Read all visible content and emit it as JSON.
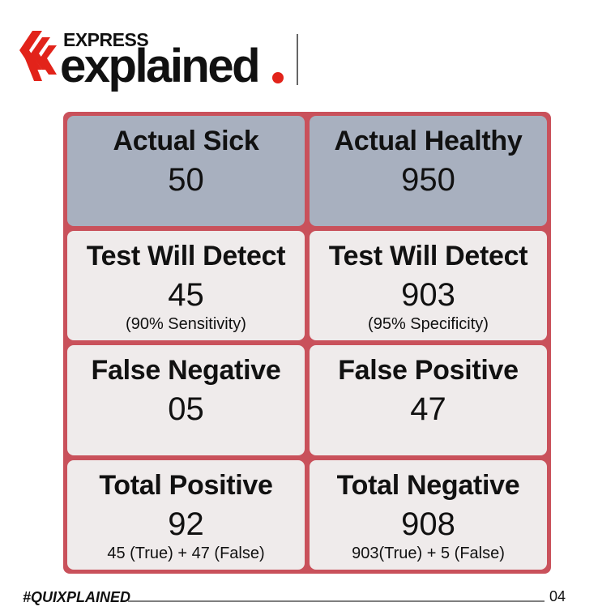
{
  "header": {
    "brand_top": "EXPRESS",
    "brand_main": "explained"
  },
  "table": {
    "rows": [
      [
        {
          "title": "Actual Sick",
          "value": "50"
        },
        {
          "title": "Actual Healthy",
          "value": "950"
        }
      ],
      [
        {
          "title": "Test Will Detect",
          "value": "45",
          "note": "(90% Sensitivity)"
        },
        {
          "title": "Test Will Detect",
          "value": "903",
          "note": "(95% Specificity)"
        }
      ],
      [
        {
          "title": "False Negative",
          "value": "05"
        },
        {
          "title": "False Positive",
          "value": "47"
        }
      ],
      [
        {
          "title": "Total Positive",
          "value": "92",
          "note": "45 (True) + 47 (False)"
        },
        {
          "title": "Total Negative",
          "value": "908",
          "note": "903(True) + 5 (False)"
        }
      ]
    ]
  },
  "footer": {
    "hashtag": "#QUIXPLAINED",
    "page": "04"
  }
}
